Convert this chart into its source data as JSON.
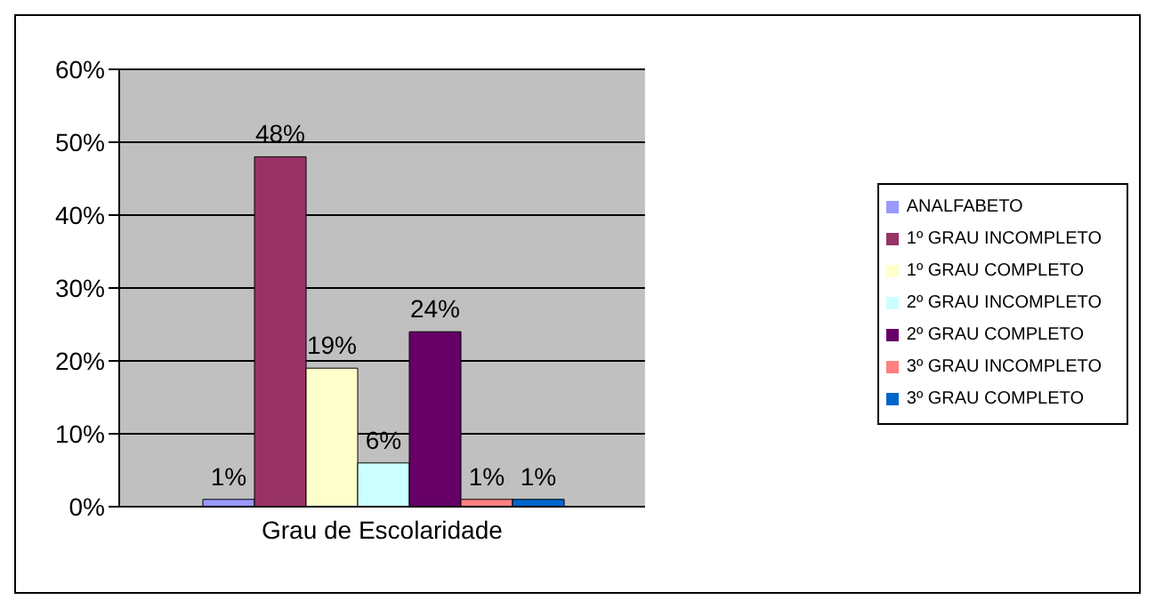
{
  "chart_data": {
    "type": "bar",
    "categories": [
      "Grau de Escolaridade"
    ],
    "series": [
      {
        "name": "ANALFABETO",
        "color": "#9999ff",
        "values": [
          1
        ],
        "value_labels": [
          "1%"
        ]
      },
      {
        "name": "1º GRAU INCOMPLETO",
        "color": "#993366",
        "values": [
          48
        ],
        "value_labels": [
          "48%"
        ]
      },
      {
        "name": "1º GRAU COMPLETO",
        "color": "#ffffcc",
        "values": [
          19
        ],
        "value_labels": [
          "19%"
        ]
      },
      {
        "name": "2º GRAU INCOMPLETO",
        "color": "#ccffff",
        "values": [
          6
        ],
        "value_labels": [
          "6%"
        ]
      },
      {
        "name": "2º GRAU COMPLETO",
        "color": "#660066",
        "values": [
          24
        ],
        "value_labels": [
          "24%"
        ]
      },
      {
        "name": "3º GRAU INCOMPLETO",
        "color": "#ff8080",
        "values": [
          1
        ],
        "value_labels": [
          "1%"
        ]
      },
      {
        "name": "3º GRAU COMPLETO",
        "color": "#0066cc",
        "values": [
          1
        ],
        "value_labels": [
          "1%"
        ]
      }
    ],
    "ylim": [
      0,
      60
    ],
    "yticks": [
      {
        "value": 0,
        "label": "0%"
      },
      {
        "value": 10,
        "label": "10%"
      },
      {
        "value": 20,
        "label": "20%"
      },
      {
        "value": 30,
        "label": "30%"
      },
      {
        "value": 40,
        "label": "40%"
      },
      {
        "value": 50,
        "label": "50%"
      },
      {
        "value": 60,
        "label": "60%"
      }
    ],
    "grid": "y",
    "legend": "right"
  }
}
